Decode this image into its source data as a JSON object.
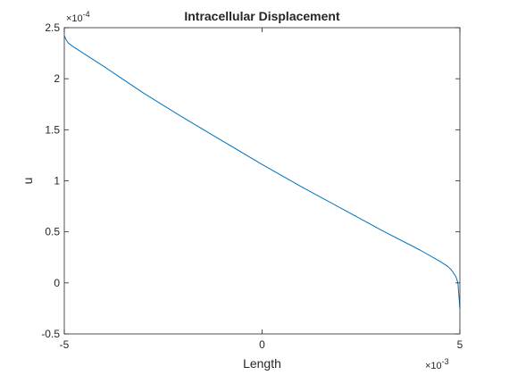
{
  "chart_data": {
    "type": "line",
    "title": "Intracellular Displacement",
    "xlabel": "Length",
    "ylabel": "u",
    "x_exponent_label": "×10",
    "x_exponent_power": "-3",
    "y_exponent_label": "×10",
    "y_exponent_power": "-4",
    "xlim": [
      -5,
      5
    ],
    "ylim": [
      -0.5,
      2.5
    ],
    "x_ticks": [
      -5,
      0,
      5
    ],
    "x_tick_labels": [
      "-5",
      "0",
      "5"
    ],
    "y_ticks": [
      -0.5,
      0,
      0.5,
      1,
      1.5,
      2,
      2.5
    ],
    "y_tick_labels": [
      "-0.5",
      "0",
      "0.5",
      "1",
      "1.5",
      "2",
      "2.5"
    ],
    "grid": false,
    "box": true,
    "line_color": "#0072BD",
    "series": [
      {
        "x": [
          -5,
          -4.95,
          -4.9,
          -4.8,
          -4.6,
          -4,
          -3,
          -2,
          -1,
          0,
          1,
          2,
          3,
          4,
          4.5,
          4.7,
          4.8,
          4.9,
          4.95,
          5
        ],
        "values": [
          2.42,
          2.38,
          2.35,
          2.32,
          2.27,
          2.12,
          1.86,
          1.62,
          1.39,
          1.16,
          0.94,
          0.73,
          0.52,
          0.32,
          0.21,
          0.16,
          0.12,
          0.06,
          0.0,
          -0.25
        ]
      }
    ]
  }
}
